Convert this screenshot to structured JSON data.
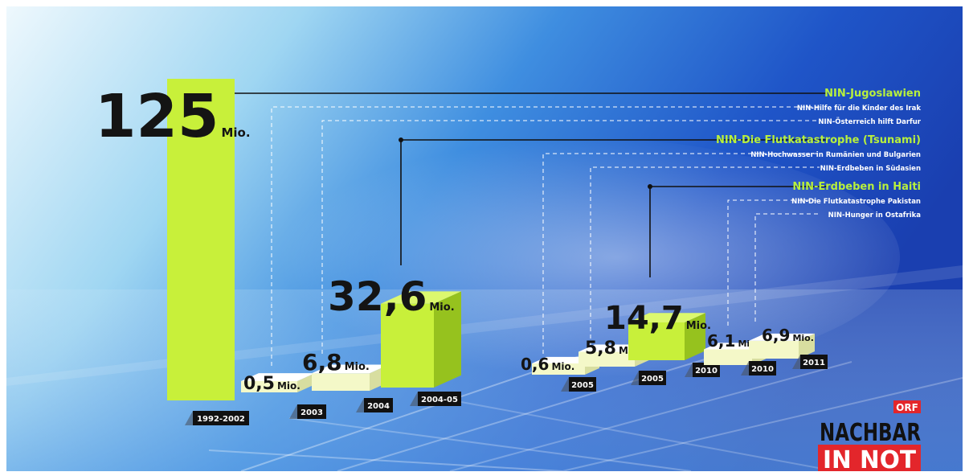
{
  "chart_data": {
    "type": "bar",
    "unit_label": "Mio.",
    "categories": [
      "1992-2002",
      "2003",
      "2004",
      "2004-05",
      "2005",
      "2005",
      "2010",
      "2010",
      "2011"
    ],
    "values": [
      125,
      0.5,
      6.8,
      32.6,
      0.6,
      5.8,
      14.7,
      6.1,
      6.9
    ],
    "value_labels": [
      "125",
      "0,5",
      "6,8",
      "32,6",
      "0,6",
      "5,8",
      "14,7",
      "6,1",
      "6,9"
    ],
    "campaigns": [
      {
        "label": "NIN-Jugoslawien",
        "highlight": true,
        "value_index": 0
      },
      {
        "label": "NIN-Hilfe für die Kinder des Irak",
        "highlight": false,
        "value_index": 1
      },
      {
        "label": "NIN-Österreich hilft Darfur",
        "highlight": false,
        "value_index": 2
      },
      {
        "label": "NIN-Die Flutkatastrophe (Tsunami)",
        "highlight": true,
        "value_index": 3
      },
      {
        "label": "NIN-Hochwasser in Rumänien und Bulgarien",
        "highlight": false,
        "value_index": 4
      },
      {
        "label": "NIN-Erdbeben in Südasien",
        "highlight": false,
        "value_index": 5
      },
      {
        "label": "NIN-Erdbeben in Haiti",
        "highlight": true,
        "value_index": 6
      },
      {
        "label": "NIN-Die Flutkatastrophe Pakistan",
        "highlight": false,
        "value_index": 7
      },
      {
        "label": "NIN-Hunger in Ostafrika",
        "highlight": false,
        "value_index": 8
      }
    ],
    "colors": {
      "highlight_bar": "#c8f03a",
      "regular_bar": "#f4f8c8",
      "highlight_text": "#b8f03c",
      "regular_text": "#ffffff"
    }
  },
  "logo": {
    "brand": "ORF",
    "line1": "NACHBAR",
    "line2": "IN NOT"
  }
}
